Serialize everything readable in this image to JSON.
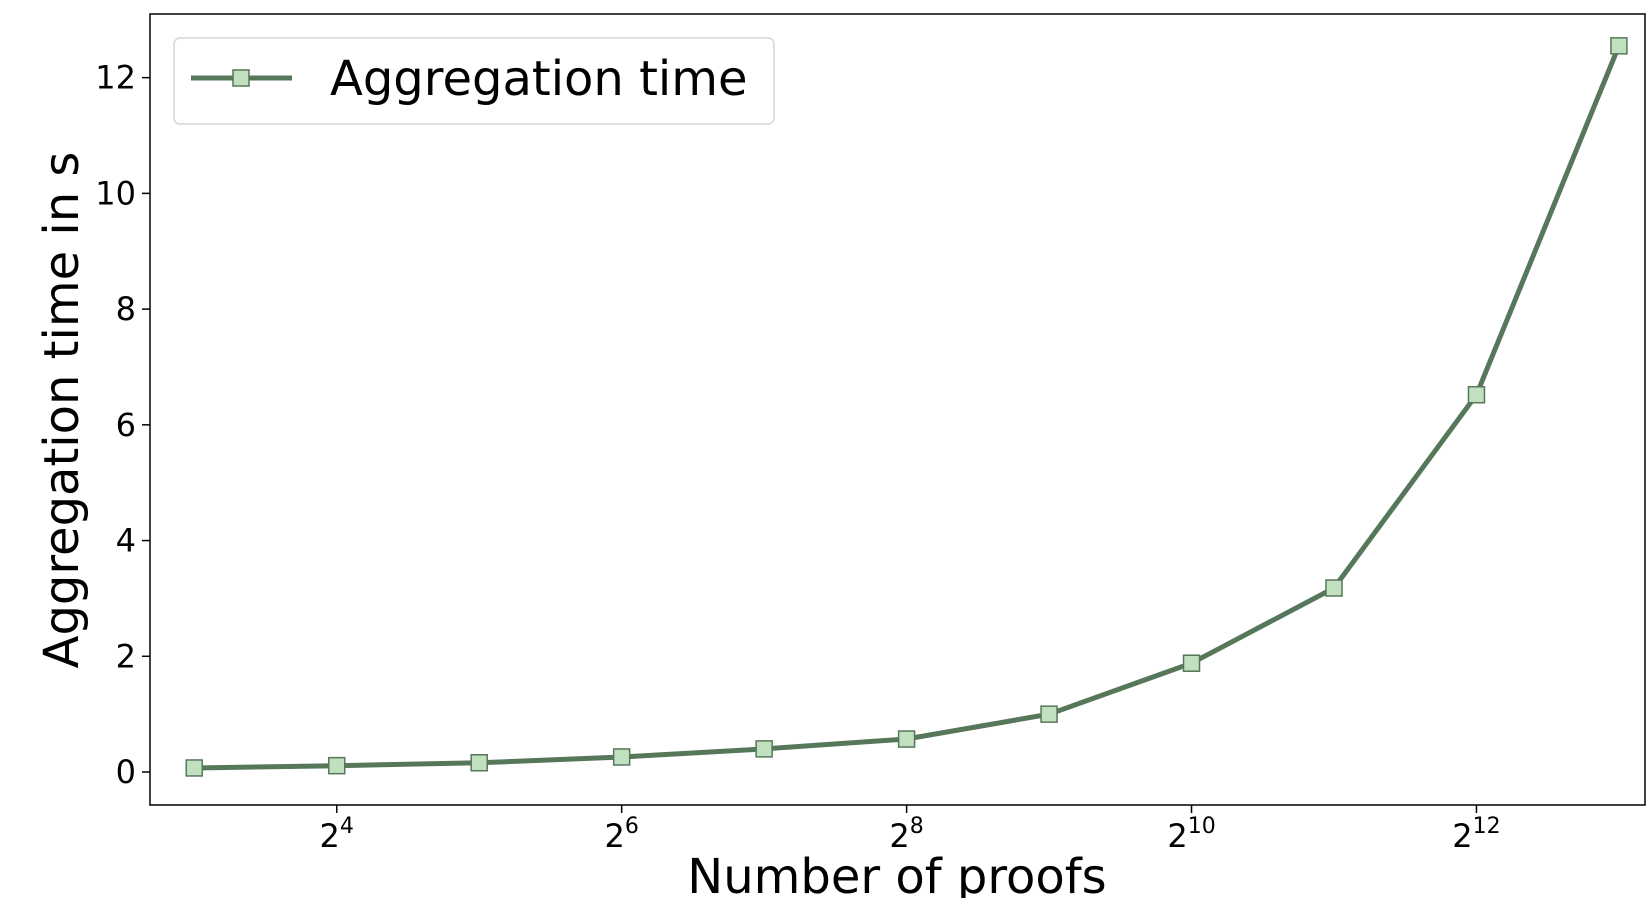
{
  "chart_data": {
    "type": "line",
    "title": "",
    "xlabel": "Number of proofs",
    "ylabel": "Aggregation time in s",
    "x_scale": "log2",
    "x": [
      8,
      16,
      32,
      64,
      128,
      256,
      512,
      1024,
      2048,
      4096,
      8192
    ],
    "x_ticks": [
      {
        "value": 16,
        "base": "2",
        "exp": "4"
      },
      {
        "value": 64,
        "base": "2",
        "exp": "6"
      },
      {
        "value": 256,
        "base": "2",
        "exp": "8"
      },
      {
        "value": 1024,
        "base": "2",
        "exp": "10"
      },
      {
        "value": 4096,
        "base": "2",
        "exp": "12"
      }
    ],
    "xlim": [
      6.45,
      9300
    ],
    "ylim": [
      -0.57,
      13.1
    ],
    "y_ticks": [
      0,
      2,
      4,
      6,
      8,
      10,
      12
    ],
    "y_tick_labels": [
      "0",
      "2",
      "4",
      "6",
      "8",
      "10",
      "12"
    ],
    "grid": false,
    "legend_position": "top-left",
    "series": [
      {
        "name": "Aggregation time",
        "values": [
          0.07,
          0.11,
          0.16,
          0.26,
          0.4,
          0.57,
          1.0,
          1.88,
          3.18,
          6.52,
          12.55
        ],
        "line_color": "#56775a",
        "marker": "square",
        "marker_fill": "#c1e0c0",
        "marker_edge": "#56775a"
      }
    ]
  }
}
